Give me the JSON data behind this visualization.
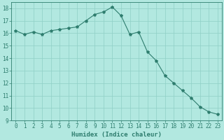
{
  "x": [
    0,
    1,
    2,
    3,
    4,
    5,
    6,
    7,
    8,
    9,
    10,
    11,
    12,
    13,
    14,
    15,
    16,
    17,
    18,
    19,
    20,
    21,
    22,
    23
  ],
  "y": [
    16.2,
    15.9,
    16.1,
    15.9,
    16.2,
    16.3,
    16.4,
    16.5,
    17.0,
    17.5,
    17.7,
    18.1,
    17.4,
    15.9,
    16.1,
    14.5,
    13.8,
    12.6,
    12.0,
    11.4,
    10.8,
    10.1,
    9.7,
    9.5
  ],
  "line_color": "#2e7d6e",
  "marker": "*",
  "marker_size": 3,
  "bg_color": "#b2e8e0",
  "grid_color": "#8fcfc6",
  "xlabel": "Humidex (Indice chaleur)",
  "ylim": [
    9,
    18.5
  ],
  "xlim": [
    -0.5,
    23.5
  ],
  "yticks": [
    9,
    10,
    11,
    12,
    13,
    14,
    15,
    16,
    17,
    18
  ],
  "xticks": [
    0,
    1,
    2,
    3,
    4,
    5,
    6,
    7,
    8,
    9,
    10,
    11,
    12,
    13,
    14,
    15,
    16,
    17,
    18,
    19,
    20,
    21,
    22,
    23
  ],
  "tick_color": "#2e7d6e",
  "label_fontsize": 6.5,
  "tick_fontsize": 5.5,
  "linewidth": 0.8
}
